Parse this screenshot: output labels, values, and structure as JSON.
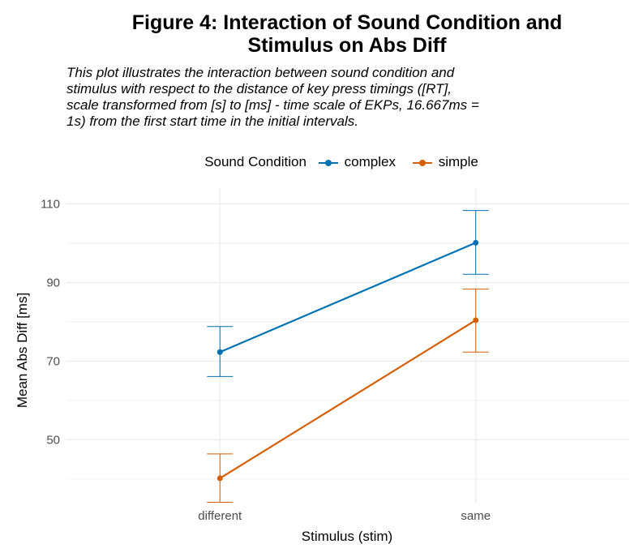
{
  "chart_data": {
    "type": "line",
    "title": [
      "Figure 4: Interaction of Sound Condition and",
      "Stimulus on Abs Diff"
    ],
    "subtitle": [
      "This plot illustrates the interaction between sound condition and",
      "stimulus with respect to the distance of key press timings ([RT],",
      "scale transformed from [s] to [ms] - time scale of EKPs, 16.667ms =",
      "1s) from the first start time in the initial intervals."
    ],
    "xlabel": "Stimulus (stim)",
    "ylabel": "Mean Abs Diff [ms]",
    "legend_title": "Sound Condition",
    "legend_position": "top",
    "categories": [
      "different",
      "same"
    ],
    "ylim": [
      34,
      114
    ],
    "yticks": [
      50,
      70,
      90,
      110
    ],
    "grid": true,
    "series": [
      {
        "name": "complex",
        "color": "#0072B2",
        "values": [
          72.3,
          100.1
        ],
        "error_low": [
          66.1,
          92.1
        ],
        "error_high": [
          78.8,
          108.3
        ]
      },
      {
        "name": "simple",
        "color": "#D55E00",
        "values": [
          40.2,
          80.4
        ],
        "error_low": [
          34.1,
          72.3
        ],
        "error_high": [
          46.4,
          88.3
        ]
      }
    ]
  }
}
